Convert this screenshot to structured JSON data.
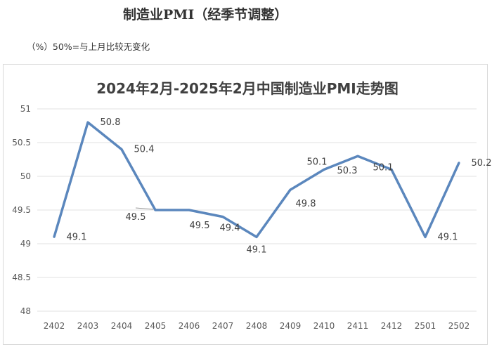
{
  "heading": "制造业PMI（经季节调整）",
  "subheading": "（%）50%=与上月比较无变化",
  "chart_data": {
    "type": "line",
    "title": "2024年2月-2025年2月中国制造业PMI走势图",
    "categories": [
      "2402",
      "2403",
      "2404",
      "2405",
      "2406",
      "2407",
      "2408",
      "2409",
      "2410",
      "2411",
      "2412",
      "2501",
      "2502"
    ],
    "series": [
      {
        "name": "PMI",
        "values": [
          49.1,
          50.8,
          50.4,
          49.5,
          49.5,
          49.4,
          49.1,
          49.8,
          50.1,
          50.3,
          50.1,
          49.1,
          50.2
        ]
      }
    ],
    "ylim": [
      48,
      51
    ],
    "yticks": [
      "48",
      "48.5",
      "49",
      "49.5",
      "50",
      "50.5",
      "51"
    ],
    "grid": true,
    "line_color": "#5b87bd",
    "xlabel": "",
    "ylabel": ""
  }
}
